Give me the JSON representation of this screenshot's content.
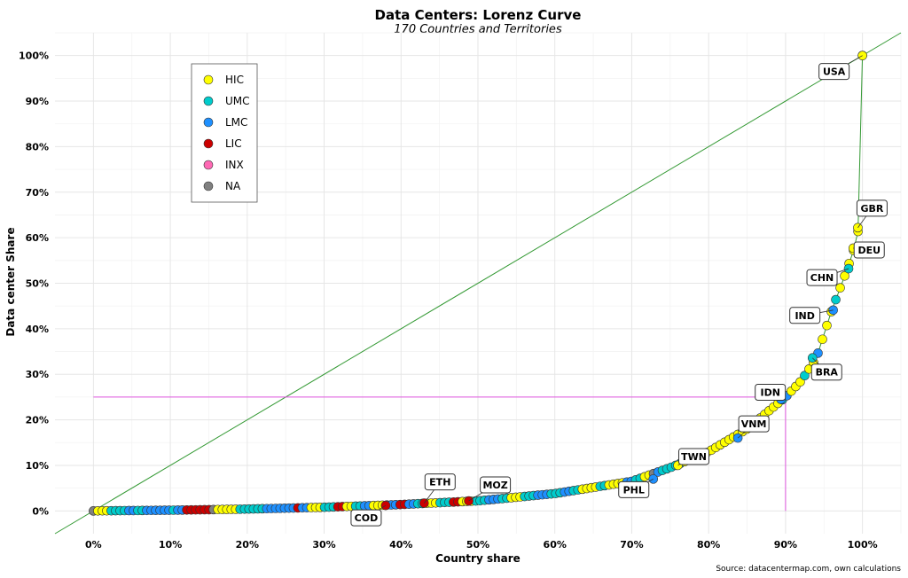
{
  "chart_data": {
    "type": "scatter",
    "title": "Data Centers: Lorenz Curve",
    "subtitle": "170 Countries and Territories",
    "xlabel": "Country share",
    "ylabel": "Data center Share",
    "caption": "Source: datacentermap.com, own calculations",
    "xlim": [
      -0.05,
      1.05
    ],
    "ylim": [
      -0.05,
      1.05
    ],
    "x_ticks": [
      0,
      0.1,
      0.2,
      0.3,
      0.4,
      0.5,
      0.6,
      0.7,
      0.8,
      0.9,
      1.0
    ],
    "x_tick_labels": [
      "0%",
      "10%",
      "20%",
      "30%",
      "40%",
      "50%",
      "60%",
      "70%",
      "80%",
      "90%",
      "100%"
    ],
    "y_ticks": [
      0,
      0.1,
      0.2,
      0.3,
      0.4,
      0.5,
      0.6,
      0.7,
      0.8,
      0.9,
      1.0
    ],
    "y_tick_labels": [
      "0%",
      "10%",
      "20%",
      "30%",
      "40%",
      "50%",
      "60%",
      "70%",
      "80%",
      "90%",
      "100%"
    ],
    "grid": true,
    "legend": {
      "position": "top-left",
      "entries": [
        {
          "label": "HIC",
          "color": "#ffff00"
        },
        {
          "label": "UMC",
          "color": "#00cccc"
        },
        {
          "label": "LMC",
          "color": "#1e90ff"
        },
        {
          "label": "LIC",
          "color": "#cc0000"
        },
        {
          "label": "INX",
          "color": "#ff69b4"
        },
        {
          "label": "NA",
          "color": "#808080"
        }
      ]
    },
    "equality_line": {
      "color": "#339933",
      "points": [
        [
          -0.05,
          -0.05
        ],
        [
          1.05,
          1.05
        ]
      ]
    },
    "reference_lines": {
      "color": "#dd55dd",
      "horizontal": {
        "y": 0.25,
        "x_from": 0,
        "x_to": 0.9
      },
      "vertical": {
        "x": 0.9,
        "y_from": 0,
        "y_to": 0.25
      }
    },
    "curve_color": "#339933",
    "color_pattern": [
      "NA",
      "HIC",
      "HIC",
      "HIC",
      "UMC",
      "UMC",
      "UMC",
      "UMC",
      "LMC",
      "LMC",
      "UMC",
      "UMC",
      "LMC",
      "LMC",
      "LMC",
      "LMC",
      "LMC",
      "LMC",
      "UMC",
      "LMC",
      "LMC",
      "LIC",
      "LIC",
      "LIC",
      "LIC",
      "LIC",
      "LIC",
      "NA",
      "HIC",
      "HIC",
      "HIC",
      "HIC",
      "HIC",
      "UMC",
      "UMC",
      "UMC",
      "UMC",
      "UMC",
      "UMC",
      "LMC",
      "LMC",
      "LMC",
      "LMC",
      "LMC",
      "LMC",
      "LMC",
      "LIC",
      "LMC",
      "LMC",
      "HIC",
      "HIC",
      "HIC",
      "UMC",
      "UMC",
      "UMC",
      "LIC",
      "LIC",
      "HIC",
      "HIC",
      "UMC",
      "UMC",
      "LMC",
      "LMC",
      "HIC",
      "HIC",
      "HIC",
      "LMC",
      "LMC",
      "LMC",
      "LIC",
      "LIC",
      "LMC",
      "LMC",
      "UMC",
      "UMC",
      "HIC",
      "HIC",
      "HIC",
      "UMC",
      "UMC",
      "UMC",
      "LIC",
      "LIC",
      "HIC",
      "HIC",
      "HIC",
      "UMC",
      "UMC",
      "UMC",
      "LMC",
      "LMC",
      "LMC",
      "UMC",
      "UMC",
      "HIC",
      "HIC",
      "HIC",
      "UMC",
      "UMC",
      "UMC",
      "LMC",
      "LMC",
      "LMC",
      "UMC",
      "UMC",
      "UMC",
      "LMC",
      "LMC",
      "UMC",
      "UMC",
      "HIC",
      "HIC",
      "HIC",
      "HIC",
      "UMC",
      "UMC",
      "HIC",
      "HIC",
      "HIC",
      "HIC",
      "LMC",
      "LMC",
      "UMC",
      "UMC",
      "HIC",
      "HIC",
      "NA",
      "LMC",
      "UMC",
      "UMC",
      "UMC",
      "UMC",
      "UMC",
      "HIC",
      "UMC",
      "UMC",
      "UMC",
      "UMC",
      "HIC",
      "HIC",
      "HIC",
      "HIC",
      "HIC",
      "HIC",
      "HIC",
      "HIC",
      "HIC",
      "HIC",
      "HIC",
      "HIC",
      "HIC",
      "HIC",
      "HIC",
      "HIC",
      "HIC",
      "UMC",
      "LMC",
      "HIC",
      "HIC",
      "HIC",
      "UMC",
      "HIC",
      "HIC",
      "LMC",
      "HIC",
      "HIC",
      "HIC",
      "UMC",
      "HIC",
      "HIC",
      "HIC",
      "HIC",
      "HIC",
      "HIC"
    ],
    "curve_control_points": [
      [
        0.0,
        0.0
      ],
      [
        0.1,
        0.0015
      ],
      [
        0.2,
        0.004
      ],
      [
        0.3,
        0.008
      ],
      [
        0.4,
        0.014
      ],
      [
        0.5,
        0.022
      ],
      [
        0.6,
        0.038
      ],
      [
        0.7,
        0.065
      ],
      [
        0.75,
        0.095
      ],
      [
        0.8,
        0.13
      ],
      [
        0.85,
        0.18
      ],
      [
        0.9,
        0.25
      ],
      [
        0.92,
        0.285
      ],
      [
        0.94,
        0.335
      ],
      [
        0.96,
        0.44
      ],
      [
        0.98,
        0.53
      ],
      [
        0.99,
        0.58
      ],
      [
        0.995,
        0.62
      ],
      [
        1.0,
        1.0
      ]
    ],
    "labeled_points": [
      {
        "label": "USA",
        "x": 1.0,
        "y": 1.0,
        "color": "#ffff00"
      },
      {
        "label": "GBR",
        "x": 0.994,
        "y": 0.622,
        "color": "#ffff00"
      },
      {
        "label": "DEU",
        "x": 0.988,
        "y": 0.577,
        "color": "#ffff00"
      },
      {
        "label": "CHN",
        "x": 0.982,
        "y": 0.532,
        "color": "#00cccc"
      },
      {
        "label": "IND",
        "x": 0.962,
        "y": 0.441,
        "color": "#1e90ff"
      },
      {
        "label": "BRA",
        "x": 0.935,
        "y": 0.336,
        "color": "#00cccc"
      },
      {
        "label": "IDN",
        "x": 0.894,
        "y": 0.245,
        "color": "#1e90ff"
      },
      {
        "label": "VNM",
        "x": 0.838,
        "y": 0.16,
        "color": "#1e90ff"
      },
      {
        "label": "TWN",
        "x": 0.76,
        "y": 0.1,
        "color": "#ffff00"
      },
      {
        "label": "PHL",
        "x": 0.728,
        "y": 0.07,
        "color": "#1e90ff"
      },
      {
        "label": "MOZ",
        "x": 0.488,
        "y": 0.022,
        "color": "#cc0000"
      },
      {
        "label": "ETH",
        "x": 0.43,
        "y": 0.017,
        "color": "#cc0000"
      },
      {
        "label": "COD",
        "x": 0.38,
        "y": 0.012,
        "color": "#cc0000"
      }
    ]
  }
}
